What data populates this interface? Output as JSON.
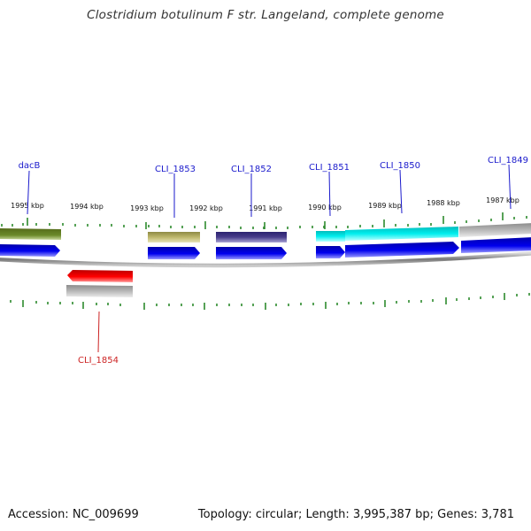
{
  "title": "Clostridium botulinum F str. Langeland, complete genome",
  "accession": "Accession: NC_009699",
  "stats": "Topology: circular; Length: 3,995,387 bp; Genes: 3,781",
  "colors": {
    "backbone": "#888888",
    "tick": "#2e8b2e",
    "forward_label": "#1a1acc",
    "reverse_label": "#cc2222",
    "cds_forward": "#0000ee"
  },
  "kbp_labels": [
    "1995 kbp",
    "1994 kbp",
    "1993 kbp",
    "1992 kbp",
    "1991 kbp",
    "1990 kbp",
    "1989 kbp",
    "1988 kbp",
    "1987 kbp"
  ],
  "gene_labels": {
    "dacB": "dacB",
    "cli1853": "CLI_1853",
    "cli1852": "CLI_1852",
    "cli1851": "CLI_1851",
    "cli1850": "CLI_1850",
    "cli1849": "CLI_1849",
    "cli1854": "CLI_1854"
  }
}
